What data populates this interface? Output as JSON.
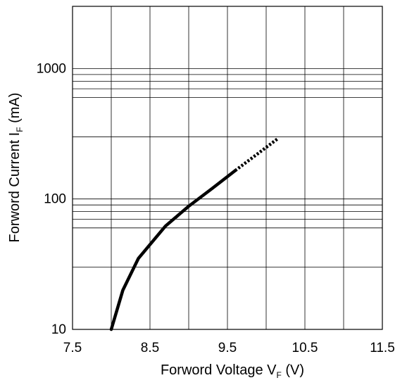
{
  "chart_data": {
    "type": "line",
    "title": "",
    "xlabel": {
      "main": "Forword Voltage V",
      "subscript": "F",
      "unit": " (V)"
    },
    "ylabel": {
      "main": "Forword Current I",
      "subscript": "F",
      "unit": "  (mA)"
    },
    "x_ticks": [
      "7.5",
      "8.5",
      "9.5",
      "10.5",
      "11.5"
    ],
    "y_ticks": [
      "10",
      "100",
      "1000"
    ],
    "xlim": [
      7.5,
      11.5
    ],
    "ylim": [
      10,
      3000
    ],
    "y_scale": "log",
    "grid": true,
    "series": [
      {
        "solid": [
          [
            8.0,
            10
          ],
          [
            8.15,
            20
          ],
          [
            8.35,
            35
          ],
          [
            8.7,
            62
          ],
          [
            9.0,
            88
          ],
          [
            9.3,
            120
          ],
          [
            9.6,
            165
          ]
        ],
        "dashed": [
          [
            9.6,
            165
          ],
          [
            10.15,
            290
          ]
        ]
      }
    ]
  }
}
